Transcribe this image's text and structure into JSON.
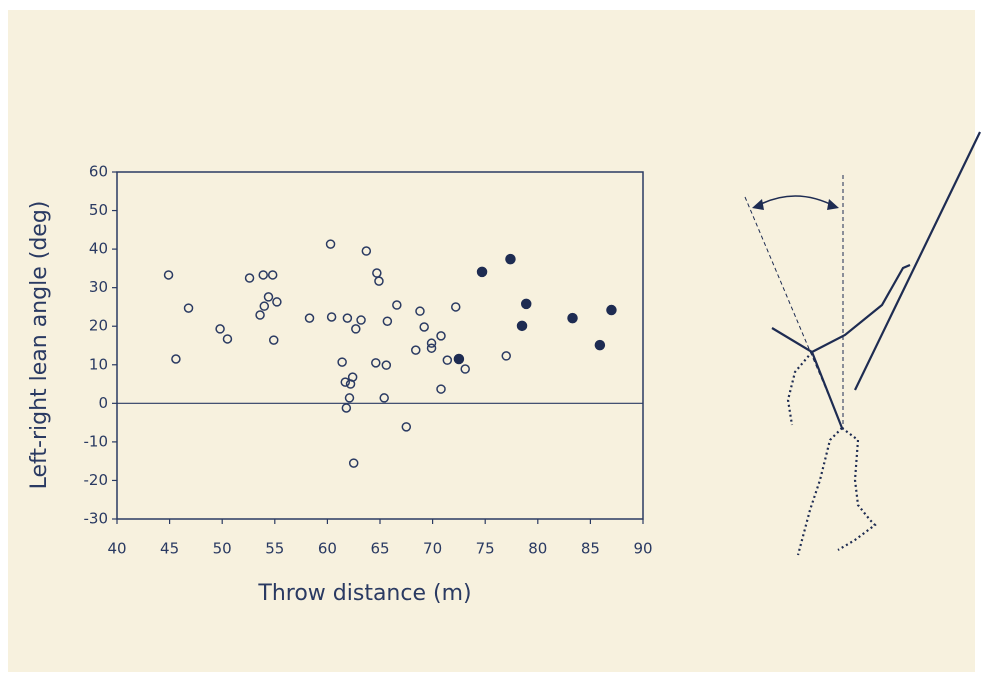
{
  "chart_data": {
    "type": "scatter",
    "xlabel": "Throw distance (m)",
    "ylabel": "Left-right lean angle (deg)",
    "xlim": [
      40,
      90
    ],
    "xticks": [
      40,
      45,
      50,
      55,
      60,
      65,
      70,
      75,
      80,
      85,
      90
    ],
    "ylim": [
      -30,
      60
    ],
    "yticks": [
      -30,
      -20,
      -10,
      0,
      10,
      20,
      30,
      40,
      50,
      60
    ],
    "zero_line": true,
    "series": [
      {
        "color": "#2a3a62",
        "filled": false,
        "x": [
          44.9,
          45.6,
          46.8,
          49.8,
          50.5,
          52.6,
          53.9,
          54.8,
          54.4,
          54.0,
          55.2,
          53.6,
          54.9,
          58.3,
          60.3,
          60.4,
          61.9,
          63.2,
          62.7,
          63.7,
          64.7,
          64.9,
          61.4,
          61.7,
          62.4,
          62.2,
          62.1,
          61.8,
          64.6,
          65.6,
          65.7,
          65.4,
          66.6,
          68.8,
          69.2,
          68.4,
          69.9,
          69.9,
          70.8,
          71.4,
          70.8,
          72.2,
          73.1,
          67.5,
          62.5,
          77.0
        ],
        "values": [
          33.3,
          11.5,
          24.7,
          19.3,
          16.7,
          32.5,
          33.3,
          33.3,
          27.6,
          25.2,
          26.3,
          22.9,
          16.4,
          22.1,
          41.3,
          22.4,
          22.1,
          21.6,
          19.3,
          39.5,
          33.8,
          31.7,
          10.7,
          5.5,
          6.8,
          5.0,
          1.4,
          -1.2,
          10.5,
          9.9,
          21.3,
          1.4,
          25.5,
          23.9,
          19.8,
          13.8,
          15.6,
          14.3,
          17.5,
          11.2,
          3.7,
          25.0,
          8.9,
          -6.1,
          -15.5,
          12.3
        ]
      },
      {
        "color": "#1e2c52",
        "filled": true,
        "x": [
          74.7,
          77.4,
          72.5,
          78.9,
          78.5,
          83.3,
          85.9,
          87.0
        ],
        "values": [
          34.1,
          37.4,
          11.5,
          25.8,
          20.1,
          22.1,
          15.1,
          24.2
        ]
      }
    ]
  }
}
